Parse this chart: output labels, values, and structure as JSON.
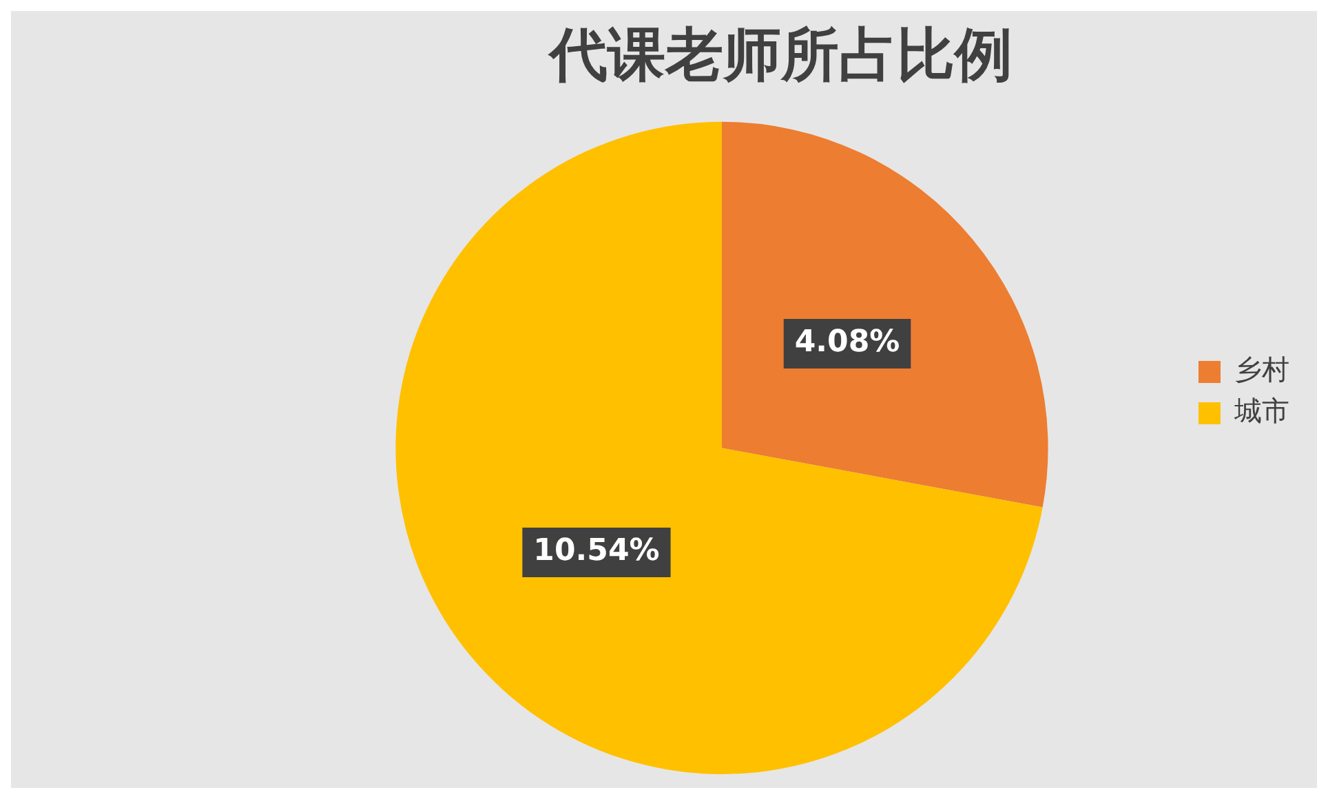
{
  "chart_data": {
    "type": "pie",
    "title": "代课老师所占比例",
    "categories": [
      "乡村",
      "城市"
    ],
    "values": [
      4.08,
      10.54
    ],
    "value_labels": [
      "4.08%",
      "10.54%"
    ],
    "colors": [
      "#ed7d31",
      "#ffc000"
    ],
    "legend": "right"
  }
}
